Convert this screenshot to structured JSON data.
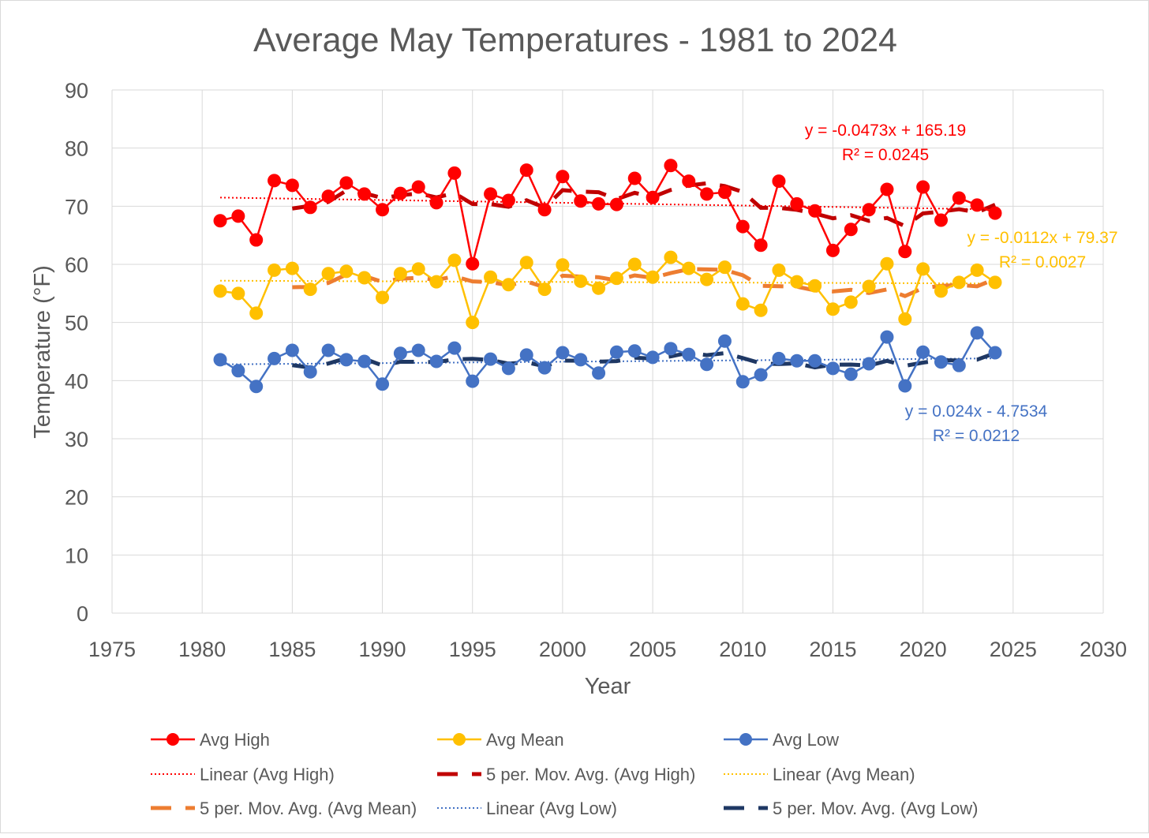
{
  "chart_data": {
    "type": "line",
    "title": "Average May Temperatures - 1981 to 2024",
    "xlabel": "Year",
    "ylabel": "Temperature (°F)",
    "xlim": [
      1975,
      2030
    ],
    "ylim": [
      0,
      90
    ],
    "xticks": [
      1975,
      1980,
      1985,
      1990,
      1995,
      2000,
      2005,
      2010,
      2015,
      2020,
      2025,
      2030
    ],
    "yticks": [
      0,
      10,
      20,
      30,
      40,
      50,
      60,
      70,
      80,
      90
    ],
    "grid": true,
    "legend_position": "bottom",
    "x": [
      1981,
      1982,
      1983,
      1984,
      1985,
      1986,
      1987,
      1988,
      1989,
      1990,
      1991,
      1992,
      1993,
      1994,
      1995,
      1996,
      1997,
      1998,
      1999,
      2000,
      2001,
      2002,
      2003,
      2004,
      2005,
      2006,
      2007,
      2008,
      2009,
      2010,
      2011,
      2012,
      2013,
      2014,
      2015,
      2016,
      2017,
      2018,
      2019,
      2020,
      2021,
      2022,
      2023,
      2024
    ],
    "series": [
      {
        "name": "Avg High",
        "color": "#FF0000",
        "ma_color": "#C00000",
        "values": [
          67.5,
          68.3,
          64.2,
          74.4,
          73.6,
          69.8,
          71.7,
          74.0,
          72.1,
          69.4,
          72.2,
          73.3,
          70.6,
          75.7,
          60.1,
          72.1,
          71.0,
          76.2,
          69.4,
          75.1,
          70.9,
          70.4,
          70.3,
          74.8,
          71.5,
          77.0,
          74.3,
          72.1,
          72.4,
          66.5,
          63.3,
          74.3,
          70.4,
          69.2,
          62.4,
          66.0,
          69.4,
          72.9,
          62.2,
          73.3,
          67.6,
          71.4,
          70.2,
          68.8
        ],
        "trend": {
          "slope": -0.0473,
          "intercept": 165.19,
          "equation": "y = -0.0473x + 165.19",
          "r2": "R² = 0.0245"
        }
      },
      {
        "name": "Avg Mean",
        "color": "#FFC000",
        "ma_color": "#ED7D31",
        "values": [
          55.4,
          55.0,
          51.6,
          59.0,
          59.3,
          55.7,
          58.4,
          58.8,
          57.7,
          54.3,
          58.4,
          59.2,
          57.0,
          60.7,
          50.0,
          57.8,
          56.5,
          60.3,
          55.7,
          59.9,
          57.1,
          55.9,
          57.6,
          60.0,
          57.8,
          61.2,
          59.3,
          57.4,
          59.5,
          53.2,
          52.1,
          59.0,
          57.0,
          56.3,
          52.3,
          53.5,
          56.2,
          60.1,
          50.6,
          59.2,
          55.4,
          56.9,
          59.0,
          56.9
        ],
        "trend": {
          "slope": -0.0112,
          "intercept": 79.37,
          "equation": "y = -0.0112x + 79.37",
          "r2": "R² = 0.0027"
        }
      },
      {
        "name": "Avg Low",
        "color": "#4472C4",
        "ma_color": "#1F3864",
        "values": [
          43.6,
          41.7,
          39.0,
          43.8,
          45.2,
          41.5,
          45.2,
          43.6,
          43.3,
          39.4,
          44.7,
          45.2,
          43.3,
          45.6,
          39.9,
          43.7,
          42.1,
          44.4,
          42.2,
          44.8,
          43.6,
          41.3,
          44.9,
          45.1,
          44.0,
          45.5,
          44.5,
          42.8,
          46.8,
          39.8,
          41.0,
          43.8,
          43.4,
          43.4,
          42.1,
          41.1,
          42.9,
          47.5,
          39.1,
          44.9,
          43.2,
          42.6,
          48.2,
          44.8
        ],
        "trend": {
          "slope": 0.024,
          "intercept": -4.7534,
          "equation": "y = 0.024x - 4.7534",
          "r2": "R² = 0.0212"
        }
      }
    ],
    "moving_average_period": 5,
    "legend": [
      "Avg High",
      "Avg Mean",
      "Avg Low",
      "Linear (Avg High)",
      "5 per. Mov. Avg. (Avg High)",
      "Linear (Avg Mean)",
      "5 per. Mov. Avg. (Avg Mean)",
      "Linear (Avg Low)",
      "5 per. Mov. Avg. (Avg Low)"
    ]
  }
}
